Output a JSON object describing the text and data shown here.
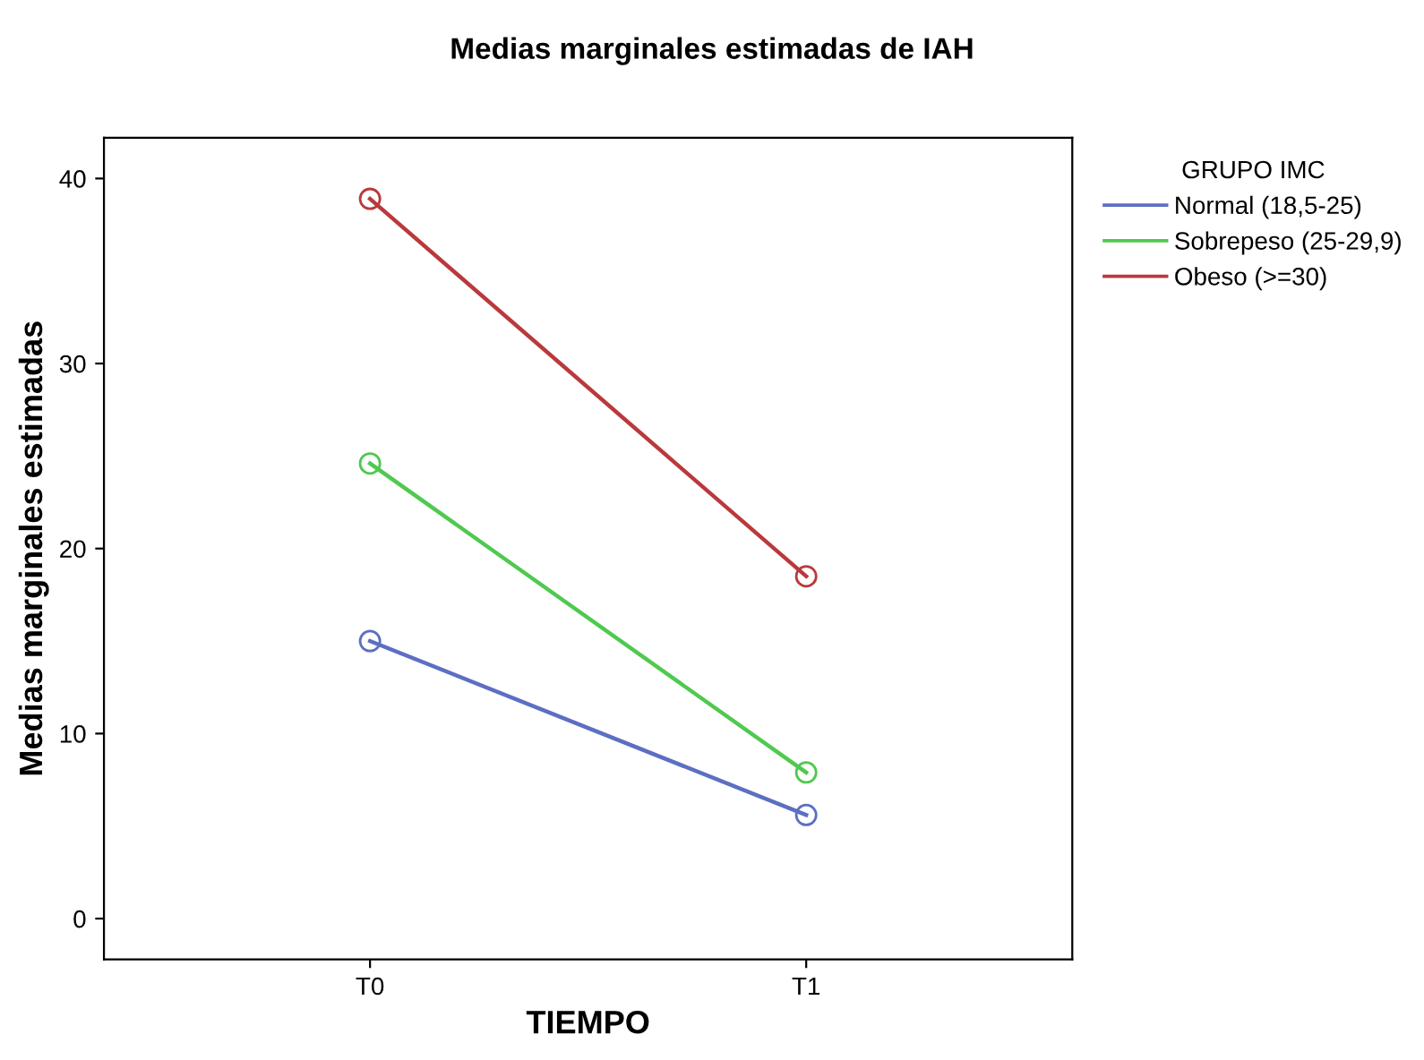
{
  "chart_data": {
    "type": "line",
    "title": "Medias marginales estimadas de IAH",
    "xlabel": "TIEMPO",
    "ylabel": "Medias marginales estimadas",
    "legend_title": "GRUPO IMC",
    "categories": [
      "T0",
      "T1"
    ],
    "series": [
      {
        "name": "Normal (18,5-25)",
        "color": "#5c6fc2",
        "values": [
          15.0,
          5.6
        ]
      },
      {
        "name": "Sobrepeso (25-29,9)",
        "color": "#4fc94f",
        "values": [
          24.6,
          7.9
        ]
      },
      {
        "name": "Obeso (>=30)",
        "color": "#b9393c",
        "values": [
          38.9,
          18.5
        ]
      }
    ],
    "ylim": [
      -2.2,
      42.2
    ],
    "yticks": [
      0,
      10,
      20,
      30,
      40
    ],
    "grid": false,
    "legend": "right",
    "marker": "circle",
    "line_style": "solid"
  }
}
